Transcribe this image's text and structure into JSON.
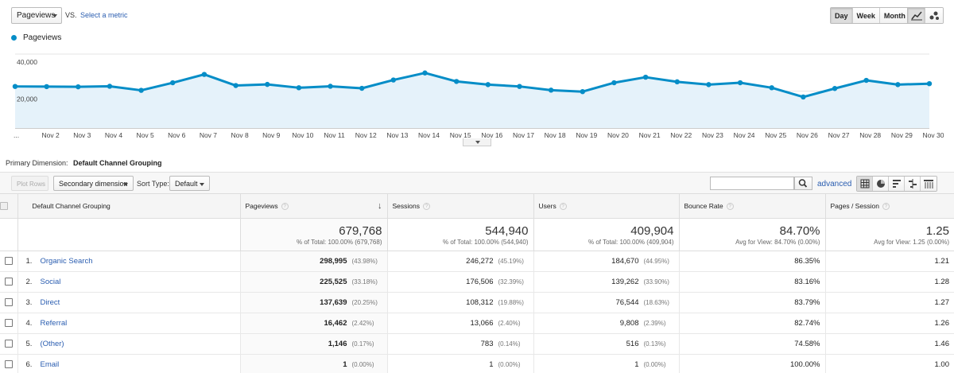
{
  "header": {
    "metric_select": "Pageviews",
    "vs": "VS.",
    "select_metric": "Select a metric",
    "period_buttons": [
      "Day",
      "Week",
      "Month"
    ],
    "active_period": "Day"
  },
  "legend": {
    "label": "Pageviews",
    "color": "#058dc7"
  },
  "chart_data": {
    "type": "area",
    "series": [
      {
        "name": "Pageviews",
        "values": [
          22500,
          22400,
          22300,
          22600,
          20400,
          24500,
          29000,
          23000,
          23600,
          21800,
          22600,
          21500,
          26000,
          29800,
          25200,
          23500,
          22500,
          20500,
          19700,
          24500,
          27500,
          25000,
          23500,
          24500,
          21800,
          16800,
          21400,
          25800,
          23500,
          24000
        ]
      }
    ],
    "x": [
      "...",
      "Nov 2",
      "Nov 3",
      "Nov 4",
      "Nov 5",
      "Nov 6",
      "Nov 7",
      "Nov 8",
      "Nov 9",
      "Nov 10",
      "Nov 11",
      "Nov 12",
      "Nov 13",
      "Nov 14",
      "Nov 15",
      "Nov 16",
      "Nov 17",
      "Nov 18",
      "Nov 19",
      "Nov 20",
      "Nov 21",
      "Nov 22",
      "Nov 23",
      "Nov 24",
      "Nov 25",
      "Nov 26",
      "Nov 27",
      "Nov 28",
      "Nov 29",
      "Nov 30"
    ],
    "yticks": [
      "20,000",
      "40,000"
    ],
    "ylim": [
      0,
      40000
    ],
    "line_color": "#058dc7",
    "fill_color": "#e5f2fa",
    "grid": true
  },
  "table_controls": {
    "primary_dimension_label": "Primary Dimension:",
    "primary_dimension_value": "Default Channel Grouping",
    "plot_rows": "Plot Rows",
    "secondary_dimension": "Secondary dimension",
    "sort_type_label": "Sort Type:",
    "sort_type_value": "Default",
    "advanced": "advanced"
  },
  "table": {
    "columns": [
      "Default Channel Grouping",
      "Pageviews",
      "Sessions",
      "Users",
      "Bounce Rate",
      "Pages / Session"
    ],
    "totals": [
      {
        "value": "679,768",
        "sub": "% of Total: 100.00% (679,768)"
      },
      {
        "value": "544,940",
        "sub": "% of Total: 100.00% (544,940)"
      },
      {
        "value": "409,904",
        "sub": "% of Total: 100.00% (409,904)"
      },
      {
        "value": "84.70%",
        "sub": "Avg for View: 84.70% (0.00%)"
      },
      {
        "value": "1.25",
        "sub": "Avg for View: 1.25 (0.00%)"
      }
    ],
    "rows": [
      {
        "num": "1.",
        "name": "Organic Search",
        "pageviews": "298,995",
        "pageviews_pct": "(43.98%)",
        "sessions": "246,272",
        "sessions_pct": "(45.19%)",
        "users": "184,670",
        "users_pct": "(44.95%)",
        "bounce": "86.35%",
        "pps": "1.21"
      },
      {
        "num": "2.",
        "name": "Social",
        "pageviews": "225,525",
        "pageviews_pct": "(33.18%)",
        "sessions": "176,506",
        "sessions_pct": "(32.39%)",
        "users": "139,262",
        "users_pct": "(33.90%)",
        "bounce": "83.16%",
        "pps": "1.28"
      },
      {
        "num": "3.",
        "name": "Direct",
        "pageviews": "137,639",
        "pageviews_pct": "(20.25%)",
        "sessions": "108,312",
        "sessions_pct": "(19.88%)",
        "users": "76,544",
        "users_pct": "(18.63%)",
        "bounce": "83.79%",
        "pps": "1.27"
      },
      {
        "num": "4.",
        "name": "Referral",
        "pageviews": "16,462",
        "pageviews_pct": "(2.42%)",
        "sessions": "13,066",
        "sessions_pct": "(2.40%)",
        "users": "9,808",
        "users_pct": "(2.39%)",
        "bounce": "82.74%",
        "pps": "1.26"
      },
      {
        "num": "5.",
        "name": "(Other)",
        "pageviews": "1,146",
        "pageviews_pct": "(0.17%)",
        "sessions": "783",
        "sessions_pct": "(0.14%)",
        "users": "516",
        "users_pct": "(0.13%)",
        "bounce": "74.58%",
        "pps": "1.46"
      },
      {
        "num": "6.",
        "name": "Email",
        "pageviews": "1",
        "pageviews_pct": "(0.00%)",
        "sessions": "1",
        "sessions_pct": "(0.00%)",
        "users": "1",
        "users_pct": "(0.00%)",
        "bounce": "100.00%",
        "pps": "1.00"
      }
    ]
  }
}
